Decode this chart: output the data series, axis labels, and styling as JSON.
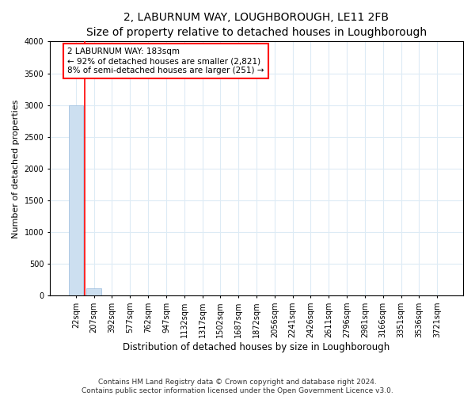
{
  "title": "2, LABURNUM WAY, LOUGHBOROUGH, LE11 2FB",
  "subtitle": "Size of property relative to detached houses in Loughborough",
  "xlabel": "Distribution of detached houses by size in Loughborough",
  "ylabel": "Number of detached properties",
  "categories": [
    "22sqm",
    "207sqm",
    "392sqm",
    "577sqm",
    "762sqm",
    "947sqm",
    "1132sqm",
    "1317sqm",
    "1502sqm",
    "1687sqm",
    "1872sqm",
    "2056sqm",
    "2241sqm",
    "2426sqm",
    "2611sqm",
    "2796sqm",
    "2981sqm",
    "3166sqm",
    "3351sqm",
    "3536sqm",
    "3721sqm"
  ],
  "values": [
    3000,
    120,
    4,
    2,
    1,
    1,
    1,
    1,
    1,
    1,
    1,
    1,
    1,
    1,
    1,
    1,
    1,
    1,
    1,
    1,
    1
  ],
  "bar_color": "#ccdff0",
  "bar_edge_color": "#99bbdd",
  "annotation_box_text": "2 LABURNUM WAY: 183sqm\n← 92% of detached houses are smaller (2,821)\n8% of semi-detached houses are larger (251) →",
  "annotation_box_color": "white",
  "annotation_box_edge_color": "red",
  "vline_color": "red",
  "vline_x": 0.5,
  "ylim": [
    0,
    4000
  ],
  "yticks": [
    0,
    500,
    1000,
    1500,
    2000,
    2500,
    3000,
    3500,
    4000
  ],
  "title_fontsize": 10,
  "subtitle_fontsize": 9,
  "xlabel_fontsize": 8.5,
  "ylabel_fontsize": 8,
  "tick_fontsize": 7,
  "footnote": "Contains HM Land Registry data © Crown copyright and database right 2024.\nContains public sector information licensed under the Open Government Licence v3.0.",
  "bg_color": "#ffffff",
  "plot_bg_color": "#ffffff",
  "grid_color": "#ddebf5"
}
